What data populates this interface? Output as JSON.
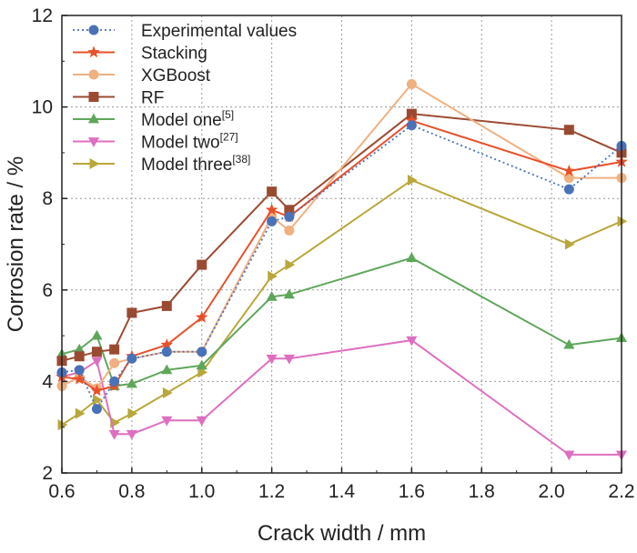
{
  "chart_data": {
    "type": "line",
    "title": "",
    "xlabel": "Crack width / mm",
    "ylabel": "Corrosion rate / %",
    "xlim": [
      0.6,
      2.2
    ],
    "ylim": [
      2,
      12
    ],
    "xticks": [
      "0.6",
      "0.8",
      "1.0",
      "1.2",
      "1.4",
      "1.6",
      "1.8",
      "2.0",
      "2.2"
    ],
    "yticks": [
      "2",
      "4",
      "6",
      "8",
      "10",
      "12"
    ],
    "grid": true,
    "legend_position": "top-left",
    "series": [
      {
        "name": "Experimental values",
        "superscript": "",
        "color": "#4a72b8",
        "marker": "circle",
        "line_style": "dotted",
        "x": [
          0.6,
          0.65,
          0.7,
          0.75,
          0.8,
          0.9,
          1.0,
          1.2,
          1.25,
          1.6,
          2.05,
          2.2
        ],
        "y": [
          4.2,
          4.25,
          3.4,
          4.0,
          4.5,
          4.65,
          4.65,
          7.5,
          7.6,
          9.6,
          8.2,
          9.15
        ]
      },
      {
        "name": "Stacking",
        "superscript": "",
        "color": "#e8502a",
        "marker": "star",
        "line_style": "solid",
        "x": [
          0.6,
          0.65,
          0.7,
          0.75,
          0.8,
          0.9,
          1.0,
          1.2,
          1.25,
          1.6,
          2.05,
          2.2
        ],
        "y": [
          4.1,
          4.05,
          3.8,
          3.9,
          4.55,
          4.8,
          5.4,
          7.75,
          7.6,
          9.7,
          8.6,
          8.8
        ]
      },
      {
        "name": "XGBoost",
        "superscript": "",
        "color": "#f0b080",
        "marker": "circle",
        "line_style": "solid",
        "x": [
          0.6,
          0.65,
          0.7,
          0.75,
          0.8,
          0.9,
          1.0,
          1.2,
          1.25,
          1.6,
          2.05,
          2.2
        ],
        "y": [
          3.9,
          4.1,
          3.85,
          4.4,
          4.5,
          4.65,
          4.65,
          7.6,
          7.3,
          10.5,
          8.45,
          8.45
        ]
      },
      {
        "name": "RF",
        "superscript": "",
        "color": "#9b4a32",
        "marker": "square",
        "line_style": "solid",
        "x": [
          0.6,
          0.65,
          0.7,
          0.75,
          0.8,
          0.9,
          1.0,
          1.2,
          1.25,
          1.6,
          2.05,
          2.2
        ],
        "y": [
          4.45,
          4.55,
          4.65,
          4.7,
          5.5,
          5.65,
          6.55,
          8.15,
          7.75,
          9.85,
          9.5,
          9.0
        ]
      },
      {
        "name": "Model one",
        "superscript": "[5]",
        "color": "#5fa65a",
        "marker": "triangle-up",
        "line_style": "solid",
        "x": [
          0.6,
          0.65,
          0.7,
          0.75,
          0.8,
          0.9,
          1.0,
          1.2,
          1.25,
          1.6,
          2.05,
          2.2
        ],
        "y": [
          4.6,
          4.7,
          5.0,
          3.9,
          3.95,
          4.25,
          4.35,
          5.85,
          5.9,
          6.7,
          4.8,
          4.95
        ]
      },
      {
        "name": "Model two",
        "superscript": "[27]",
        "color": "#de6fc0",
        "marker": "triangle-down",
        "line_style": "solid",
        "x": [
          0.6,
          0.65,
          0.7,
          0.75,
          0.8,
          0.9,
          1.0,
          1.2,
          1.25,
          1.6,
          2.05,
          2.2
        ],
        "y": [
          4.1,
          4.2,
          4.45,
          2.85,
          2.85,
          3.15,
          3.15,
          4.5,
          4.5,
          4.9,
          2.4,
          2.4
        ]
      },
      {
        "name": "Model three",
        "superscript": "[38]",
        "color": "#b8a73a",
        "marker": "triangle-right",
        "line_style": "solid",
        "x": [
          0.6,
          0.65,
          0.7,
          0.75,
          0.8,
          0.9,
          1.0,
          1.2,
          1.25,
          1.6,
          2.05,
          2.2
        ],
        "y": [
          3.05,
          3.3,
          3.6,
          3.1,
          3.3,
          3.75,
          4.2,
          6.3,
          6.55,
          8.4,
          7.0,
          7.5
        ]
      }
    ]
  }
}
